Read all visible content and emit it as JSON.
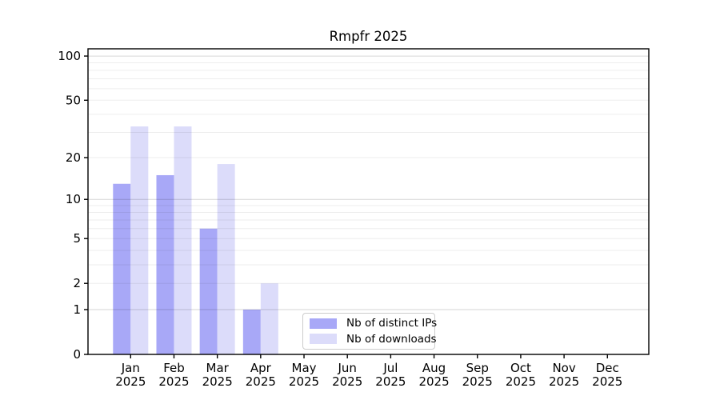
{
  "chart_data": {
    "type": "bar",
    "title": "Rmpfr 2025",
    "categories": [
      "Jan\n2025",
      "Feb\n2025",
      "Mar\n2025",
      "Apr\n2025",
      "May\n2025",
      "Jun\n2025",
      "Jul\n2025",
      "Aug\n2025",
      "Sep\n2025",
      "Oct\n2025",
      "Nov\n2025",
      "Dec\n2025"
    ],
    "series": [
      {
        "name": "Nb of distinct IPs",
        "color": "#a8a8f7",
        "values": [
          13,
          15,
          6,
          1,
          0,
          0,
          0,
          0,
          0,
          0,
          0,
          0
        ]
      },
      {
        "name": "Nb of downloads",
        "color": "#dcdcfa",
        "values": [
          33,
          33,
          18,
          2,
          0,
          0,
          0,
          0,
          0,
          0,
          0,
          0
        ]
      }
    ],
    "xlabel": "",
    "ylabel": "",
    "yscale": "log1p",
    "ylim": [
      0,
      112
    ],
    "yticks": [
      0,
      1,
      2,
      5,
      10,
      20,
      50,
      100
    ],
    "major_gridlines": [
      1,
      10,
      100
    ],
    "minor_gridlines": [
      2,
      3,
      4,
      5,
      6,
      7,
      8,
      9,
      20,
      30,
      40,
      50,
      60,
      70,
      80,
      90
    ],
    "grid": true,
    "legend_position": "inside lower center"
  },
  "colors": {
    "axis": "#000000",
    "major_grid": "rgba(0,0,0,0.16)",
    "minor_grid": "rgba(0,0,0,0.07)",
    "legend_border": "#cccccc"
  }
}
